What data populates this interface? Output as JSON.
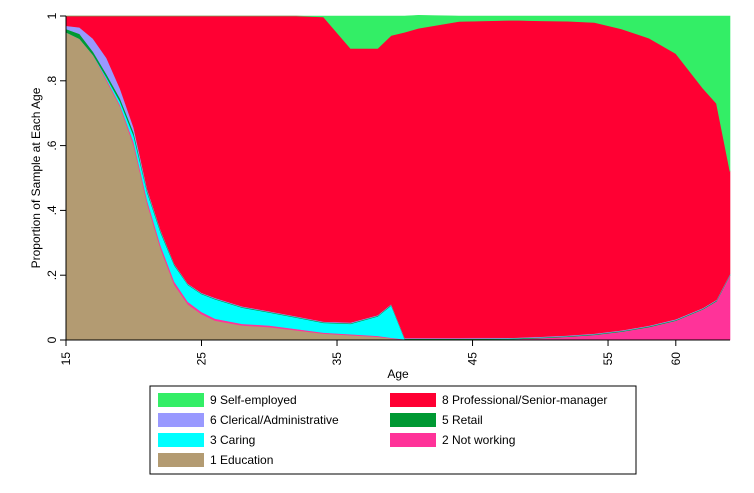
{
  "chart_data": {
    "type": "area",
    "stacked": true,
    "xlabel": "Age",
    "ylabel": "Proportion of Sample at Each Age",
    "xlim": [
      15,
      64
    ],
    "ylim": [
      0,
      1
    ],
    "x_ticks": [
      15,
      25,
      35,
      45,
      55,
      60
    ],
    "y_ticks": [
      0,
      0.2,
      0.4,
      0.6,
      0.8,
      1
    ],
    "x_tick_labels": [
      "15",
      "25",
      "35",
      "45",
      "55",
      "60"
    ],
    "y_tick_labels": [
      "0",
      ".2",
      ".4",
      ".6",
      ".8",
      "1"
    ],
    "grid": false,
    "legend_position": "bottom",
    "x": [
      15,
      16,
      17,
      18,
      19,
      20,
      21,
      22,
      23,
      24,
      25,
      26,
      28,
      30,
      32,
      34,
      36,
      38,
      39,
      40,
      41,
      44,
      48,
      50,
      52,
      54,
      56,
      58,
      60,
      62,
      63,
      64
    ],
    "series": [
      {
        "name": "1 Education",
        "color": "#b39b72",
        "values": [
          0.95,
          0.93,
          0.88,
          0.8,
          0.72,
          0.6,
          0.42,
          0.28,
          0.17,
          0.11,
          0.08,
          0.06,
          0.045,
          0.04,
          0.03,
          0.02,
          0.015,
          0.01,
          0.005,
          0,
          0,
          0,
          0,
          0,
          0,
          0,
          0,
          0,
          0,
          0,
          0,
          0
        ]
      },
      {
        "name": "2 Not working",
        "color": "#ff3399",
        "values": [
          0,
          0,
          0,
          0.005,
          0.005,
          0.01,
          0.01,
          0.01,
          0.01,
          0.008,
          0.007,
          0.006,
          0.005,
          0.005,
          0.004,
          0.003,
          0.003,
          0.003,
          0.002,
          0.002,
          0.002,
          0.002,
          0.003,
          0.006,
          0.01,
          0.016,
          0.026,
          0.04,
          0.06,
          0.095,
          0.12,
          0.2
        ]
      },
      {
        "name": "3 Caring",
        "color": "#00ffff",
        "values": [
          0,
          0,
          0,
          0.005,
          0.01,
          0.02,
          0.025,
          0.04,
          0.05,
          0.052,
          0.055,
          0.06,
          0.05,
          0.04,
          0.035,
          0.03,
          0.032,
          0.06,
          0.1,
          0,
          0,
          0,
          0,
          0,
          0,
          0,
          0,
          0,
          0,
          0,
          0,
          0
        ]
      },
      {
        "name": "5 Retail",
        "color": "#009933",
        "values": [
          0.01,
          0.015,
          0.01,
          0.01,
          0.01,
          0.01,
          0.005,
          0.005,
          0.003,
          0.002,
          0.002,
          0.002,
          0.002,
          0.002,
          0.002,
          0.002,
          0.002,
          0.002,
          0.002,
          0.002,
          0.002,
          0.002,
          0.002,
          0.002,
          0.002,
          0.002,
          0.002,
          0.002,
          0.002,
          0.002,
          0.002,
          0.002
        ]
      },
      {
        "name": "6 Clerical/Administrative",
        "color": "#9999ff",
        "values": [
          0.01,
          0.02,
          0.04,
          0.05,
          0.03,
          0.015,
          0.005,
          0.003,
          0.002,
          0.002,
          0.002,
          0.002,
          0.002,
          0.002,
          0.002,
          0.002,
          0.002,
          0.002,
          0.002,
          0.002,
          0.002,
          0.002,
          0.002,
          0.002,
          0.002,
          0.002,
          0.002,
          0.002,
          0.002,
          0.002,
          0.002,
          0.002
        ]
      },
      {
        "name": "8 Professional/Senior-manager",
        "color": "#ff0033",
        "values": [
          0.03,
          0.035,
          0.07,
          0.13,
          0.225,
          0.345,
          0.535,
          0.662,
          0.765,
          0.826,
          0.854,
          0.87,
          0.896,
          0.911,
          0.927,
          0.94,
          0.846,
          0.823,
          0.829,
          0.944,
          0.956,
          0.977,
          0.98,
          0.975,
          0.97,
          0.96,
          0.93,
          0.888,
          0.82,
          0.678,
          0.606,
          0.316
        ]
      },
      {
        "name": "9 Self-employed",
        "color": "#33ee66",
        "values": [
          0,
          0,
          0,
          0,
          0,
          0,
          0,
          0,
          0,
          0,
          0,
          0,
          0,
          0,
          0,
          0.003,
          0.1,
          0.1,
          0.06,
          0.05,
          0.04,
          0.017,
          0.013,
          0.015,
          0.016,
          0.02,
          0.04,
          0.068,
          0.116,
          0.223,
          0.27,
          0.48
        ]
      }
    ],
    "legend": [
      {
        "label": "9 Self-employed",
        "color": "#33ee66"
      },
      {
        "label": "8 Professional/Senior-manager",
        "color": "#ff0033"
      },
      {
        "label": "6 Clerical/Administrative",
        "color": "#9999ff"
      },
      {
        "label": "5 Retail",
        "color": "#009933"
      },
      {
        "label": "3 Caring",
        "color": "#00ffff"
      },
      {
        "label": "2 Not working",
        "color": "#ff3399"
      },
      {
        "label": "1 Education",
        "color": "#b39b72"
      }
    ]
  }
}
